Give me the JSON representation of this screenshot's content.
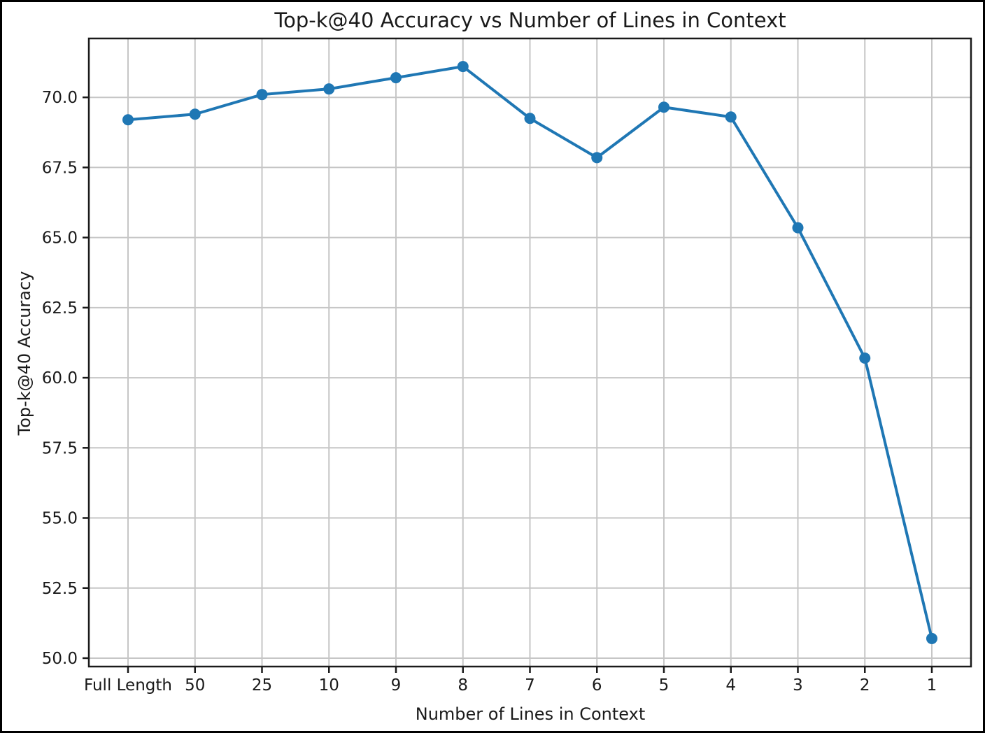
{
  "chart_data": {
    "type": "line",
    "title": "Top-k@40 Accuracy vs Number of Lines in Context",
    "xlabel": "Number of Lines in Context",
    "ylabel": "Top-k@40 Accuracy",
    "categories": [
      "Full Length",
      "50",
      "25",
      "10",
      "9",
      "8",
      "7",
      "6",
      "5",
      "4",
      "3",
      "2",
      "1"
    ],
    "series": [
      {
        "name": "Top-k@40 Accuracy",
        "values": [
          69.2,
          69.4,
          70.1,
          70.3,
          70.7,
          71.1,
          69.25,
          67.85,
          69.65,
          69.3,
          65.35,
          60.7,
          50.7
        ]
      }
    ],
    "ylim": [
      49.7,
      72.1
    ],
    "yticks": [
      50.0,
      52.5,
      55.0,
      57.5,
      60.0,
      62.5,
      65.0,
      67.5,
      70.0
    ],
    "ytick_labels": [
      "50.0",
      "52.5",
      "55.0",
      "57.5",
      "60.0",
      "62.5",
      "65.0",
      "67.5",
      "70.0"
    ],
    "grid": true,
    "legend_position": "none",
    "line_color": "#1f77b4",
    "marker": "circle",
    "grid_color": "#c6c6c6",
    "spine_color": "#1a1a1a"
  }
}
